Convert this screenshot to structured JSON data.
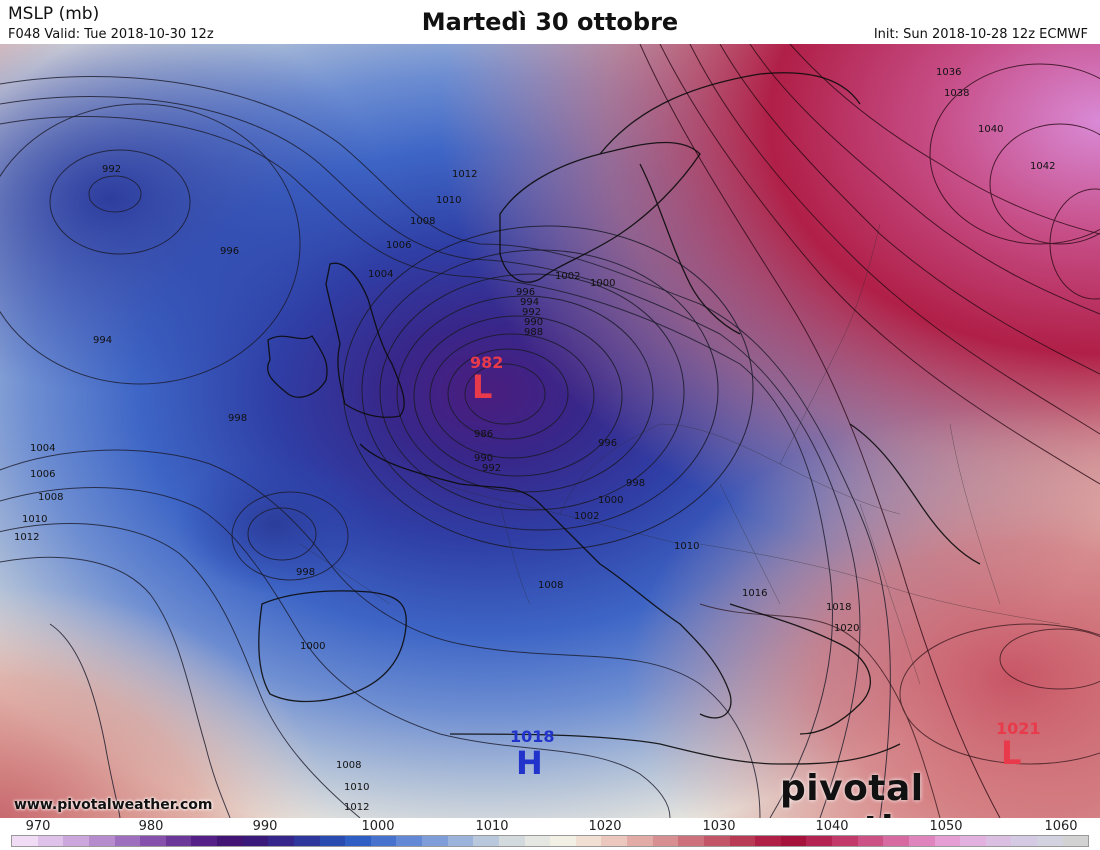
{
  "header": {
    "variable": "MSLP (mb)",
    "valid": "F048 Valid: Tue 2018-10-30 12z",
    "title": "Martedì 30 ottobre",
    "init": "Init: Sun 2018-10-28 12z ECMWF"
  },
  "branding": {
    "website": "www.pivotalweather.com",
    "logo": "pivotal weather"
  },
  "pressure_centers": [
    {
      "type": "L",
      "value": "982",
      "color": "#e83a4a"
    },
    {
      "type": "H",
      "value": "1018",
      "color": "#2233cc"
    },
    {
      "type": "L",
      "value": "1021",
      "color": "#e83a4a"
    }
  ],
  "contour_labels": [
    "992",
    "996",
    "994",
    "998",
    "1004",
    "1006",
    "1008",
    "1010",
    "1012",
    "1002",
    "1000",
    "990",
    "988",
    "986",
    "1016",
    "1018",
    "1020",
    "1036",
    "1038",
    "1040",
    "1042"
  ],
  "colorbar": {
    "ticks": [
      "970",
      "980",
      "990",
      "1000",
      "1010",
      "1020",
      "1030",
      "1040",
      "1050",
      "1060"
    ],
    "colors": [
      "#f0dcf5",
      "#dfc2ea",
      "#cba7dd",
      "#b68ccf",
      "#9e6ebf",
      "#8551ad",
      "#6b3799",
      "#541f86",
      "#421575",
      "#391a7a",
      "#34268a",
      "#2e379c",
      "#2a4bb0",
      "#2f5fc4",
      "#4773cf",
      "#6388d5",
      "#7f9ed9",
      "#9cb3dc",
      "#b9c8dd",
      "#d2dadd",
      "#e5e8e2",
      "#f2efe4",
      "#f2dfd3",
      "#ebc7bd",
      "#e2aba6",
      "#d88f91",
      "#cd727c",
      "#c25568",
      "#b93a55",
      "#b02046",
      "#a5133c",
      "#b42452",
      "#c13a69",
      "#cc5285",
      "#d76aa0",
      "#e084bd",
      "#e59dd3",
      "#e3b1df",
      "#dbbfe3",
      "#d4cae3",
      "#d3d2e0",
      "#d2d2d2"
    ]
  }
}
